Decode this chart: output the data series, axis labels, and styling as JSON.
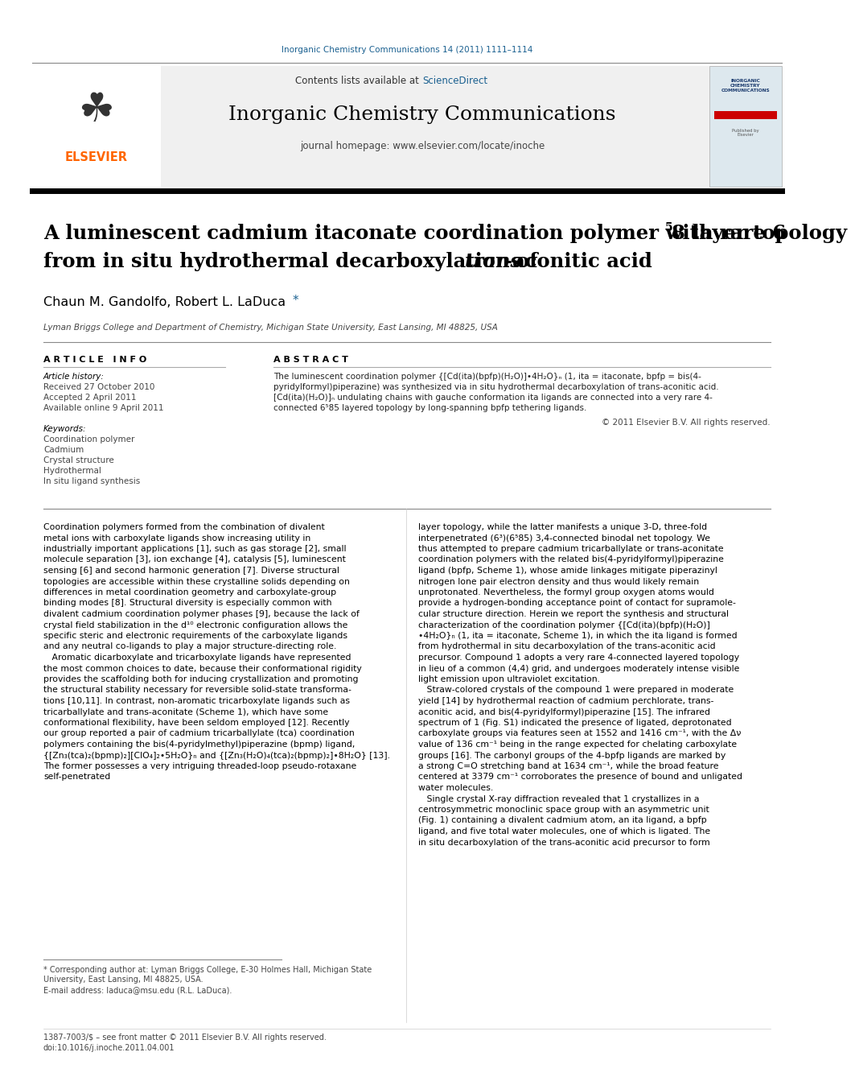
{
  "journal_line": "Inorganic Chemistry Communications 14 (2011) 1111–1114",
  "header_bg": "#f0f0f0",
  "header_text1": "Contents lists available at ",
  "header_sciencedirect": "ScienceDirect",
  "header_journal": "Inorganic Chemistry Communications",
  "header_homepage": "journal homepage: www.elsevier.com/locate/inoche",
  "title_line1": "A luminescent cadmium itaconate coordination polymer with rare 6",
  "title_sup": "5",
  "title_line1b": "8 layer topology",
  "title_line2": "from in situ hydrothermal decarboxylation of ",
  "title_line2_italic": "trans",
  "title_line2b": "-aconitic acid",
  "authors": "Chaun M. Gandolfo, Robert L. LaDuca",
  "affiliation": "Lyman Briggs College and Department of Chemistry, Michigan State University, East Lansing, MI 48825, USA",
  "article_info_title": "A R T I C L E   I N F O",
  "abstract_title": "A B S T R A C T",
  "article_history_label": "Article history:",
  "received": "Received 27 October 2010",
  "accepted": "Accepted 2 April 2011",
  "available": "Available online 9 April 2011",
  "keywords_label": "Keywords:",
  "keywords": [
    "Coordination polymer",
    "Cadmium",
    "Crystal structure",
    "Hydrothermal",
    "In situ ligand synthesis"
  ],
  "abstract_lines": [
    "The luminescent coordination polymer {[Cd(ita)(bpfp)(H₂O)]•4H₂O}ₙ (1, ita = itaconate, bpfp = bis(4-",
    "pyridylformyl)piperazine) was synthesized via in situ hydrothermal decarboxylation of trans-aconitic acid.",
    "[Cd(ita)(H₂O)]ₙ undulating chains with gauche conformation ita ligands are connected into a very rare 4-",
    "connected 6⁵85 layered topology by long-spanning bpfp tethering ligands."
  ],
  "copyright": "© 2011 Elsevier B.V. All rights reserved.",
  "body1_lines": [
    "Coordination polymers formed from the combination of divalent",
    "metal ions with carboxylate ligands show increasing utility in",
    "industrially important applications [1], such as gas storage [2], small",
    "molecule separation [3], ion exchange [4], catalysis [5], luminescent",
    "sensing [6] and second harmonic generation [7]. Diverse structural",
    "topologies are accessible within these crystalline solids depending on",
    "differences in metal coordination geometry and carboxylate-group",
    "binding modes [8]. Structural diversity is especially common with",
    "divalent cadmium coordination polymer phases [9], because the lack of",
    "crystal field stabilization in the d¹⁰ electronic configuration allows the",
    "specific steric and electronic requirements of the carboxylate ligands",
    "and any neutral co-ligands to play a major structure-directing role.",
    "   Aromatic dicarboxylate and tricarboxylate ligands have represented",
    "the most common choices to date, because their conformational rigidity",
    "provides the scaffolding both for inducing crystallization and promoting",
    "the structural stability necessary for reversible solid-state transforma-",
    "tions [10,11]. In contrast, non-aromatic tricarboxylate ligands such as",
    "tricarballylate and trans-aconitate (Scheme 1), which have some",
    "conformational flexibility, have been seldom employed [12]. Recently",
    "our group reported a pair of cadmium tricarballylate (tca) coordination",
    "polymers containing the bis(4-pyridylmethyl)piperazine (bpmp) ligand,",
    "{[Zn₃(tca)₂(bpmp)₂][ClO₄]₂•5H₂O}ₙ and {[Zn₃(H₂O)₄(tca)₂(bpmp)₂]•8H₂O} [13].",
    "The former possesses a very intriguing threaded-loop pseudo-rotaxane",
    "self-penetrated"
  ],
  "body2_lines": [
    "layer topology, while the latter manifests a unique 3-D, three-fold",
    "interpenetrated (6³)(6⁵85) 3,4-connected binodal net topology. We",
    "thus attempted to prepare cadmium tricarballylate or trans-aconitate",
    "coordination polymers with the related bis(4-pyridylformyl)piperazine",
    "ligand (bpfp, Scheme 1), whose amide linkages mitigate piperazinyl",
    "nitrogen lone pair electron density and thus would likely remain",
    "unprotonated. Nevertheless, the formyl group oxygen atoms would",
    "provide a hydrogen-bonding acceptance point of contact for supramole-",
    "cular structure direction. Herein we report the synthesis and structural",
    "characterization of the coordination polymer {[Cd(ita)(bpfp)(H₂O)]",
    "•4H₂O}ₙ (1, ita = itaconate, Scheme 1), in which the ita ligand is formed",
    "from hydrothermal in situ decarboxylation of the trans-aconitic acid",
    "precursor. Compound 1 adopts a very rare 4-connected layered topology",
    "in lieu of a common (4,4) grid, and undergoes moderately intense visible",
    "light emission upon ultraviolet excitation.",
    "   Straw-colored crystals of the compound 1 were prepared in moderate",
    "yield [14] by hydrothermal reaction of cadmium perchlorate, trans-",
    "aconitic acid, and bis(4-pyridylformyl)piperazine [15]. The infrared",
    "spectrum of 1 (Fig. S1) indicated the presence of ligated, deprotonated",
    "carboxylate groups via features seen at 1552 and 1416 cm⁻¹, with the Δν",
    "value of 136 cm⁻¹ being in the range expected for chelating carboxylate",
    "groups [16]. The carbonyl groups of the 4-bpfp ligands are marked by",
    "a strong C=O stretching band at 1634 cm⁻¹, while the broad feature",
    "centered at 3379 cm⁻¹ corroborates the presence of bound and unligated",
    "water molecules.",
    "   Single crystal X-ray diffraction revealed that 1 crystallizes in a",
    "centrosymmetric monoclinic space group with an asymmetric unit",
    "(Fig. 1) containing a divalent cadmium atom, an ita ligand, a bpfp",
    "ligand, and five total water molecules, one of which is ligated. The",
    "in situ decarboxylation of the trans-aconitic acid precursor to form"
  ],
  "footnote1a": "* Corresponding author at: Lyman Briggs College, E-30 Holmes Hall, Michigan State",
  "footnote1b": "University, East Lansing, MI 48825, USA.",
  "footnote2": "E-mail address: laduca@msu.edu (R.L. LaDuca).",
  "footer": "1387-7003/$ – see front matter © 2011 Elsevier B.V. All rights reserved.",
  "doi": "doi:10.1016/j.inoche.2011.04.001",
  "elsevier_color": "#FF6600",
  "sciencedirect_color": "#1a6090",
  "light_gray": "#f0f0f0"
}
